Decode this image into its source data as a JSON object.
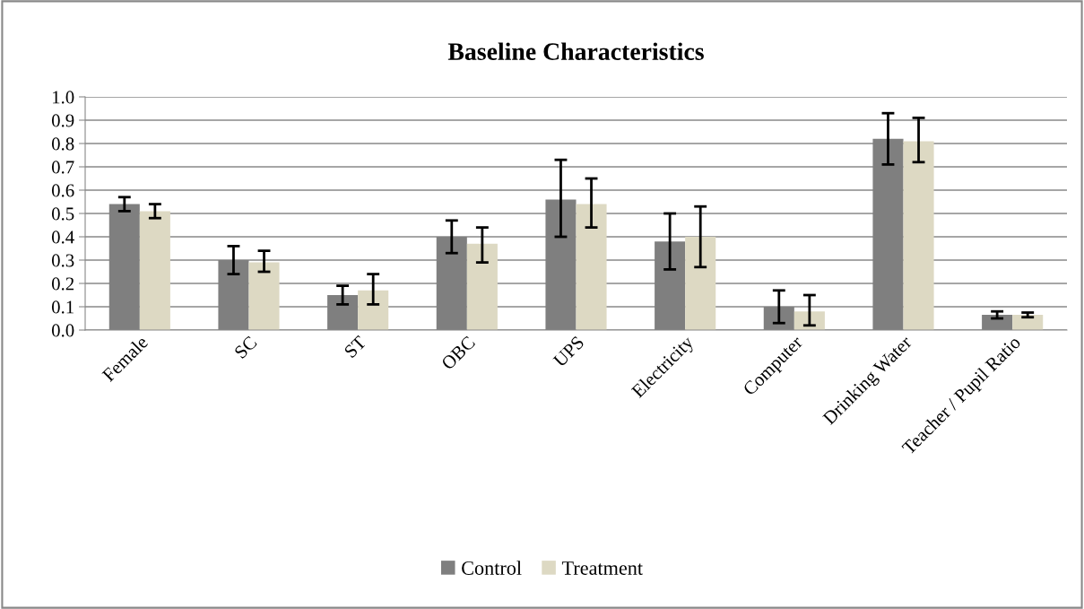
{
  "chart_data": {
    "type": "bar",
    "title": "Baseline Characteristics",
    "categories": [
      "Female",
      "SC",
      "ST",
      "OBC",
      "UPS",
      "Electricity",
      "Computer",
      "Drinking Water",
      "Teacher / Pupil Ratio"
    ],
    "series": [
      {
        "name": "Control",
        "color": "#7f7f7f",
        "values": [
          0.54,
          0.3,
          0.15,
          0.4,
          0.56,
          0.38,
          0.1,
          0.82,
          0.065
        ],
        "errors": [
          [
            0.51,
            0.57
          ],
          [
            0.24,
            0.36
          ],
          [
            0.11,
            0.19
          ],
          [
            0.33,
            0.47
          ],
          [
            0.4,
            0.73
          ],
          [
            0.26,
            0.5
          ],
          [
            0.03,
            0.17
          ],
          [
            0.71,
            0.93
          ],
          [
            0.05,
            0.08
          ]
        ]
      },
      {
        "name": "Treatment",
        "color": "#ddd9c3",
        "values": [
          0.51,
          0.29,
          0.17,
          0.37,
          0.54,
          0.4,
          0.08,
          0.81,
          0.065
        ],
        "errors": [
          [
            0.48,
            0.54
          ],
          [
            0.25,
            0.34
          ],
          [
            0.11,
            0.24
          ],
          [
            0.29,
            0.44
          ],
          [
            0.44,
            0.65
          ],
          [
            0.27,
            0.53
          ],
          [
            0.02,
            0.15
          ],
          [
            0.72,
            0.91
          ],
          [
            0.055,
            0.075
          ]
        ]
      }
    ],
    "ylim": [
      0,
      1.0
    ],
    "yticks": [
      {
        "value": 0,
        "label": "0.0"
      },
      {
        "value": 0.1,
        "label": "0.1"
      },
      {
        "value": 0.2,
        "label": "0.2"
      },
      {
        "value": 0.3,
        "label": "0.3"
      },
      {
        "value": 0.4,
        "label": "0.4"
      },
      {
        "value": 0.5,
        "label": "0.5"
      },
      {
        "value": 0.6,
        "label": "0.6"
      },
      {
        "value": 0.7,
        "label": "0.7"
      },
      {
        "value": 0.8,
        "label": "0.8"
      },
      {
        "value": 0.9,
        "label": "0.9"
      },
      {
        "value": 1.0,
        "label": "1.0"
      }
    ],
    "grid": "y",
    "legend": "bottom"
  }
}
